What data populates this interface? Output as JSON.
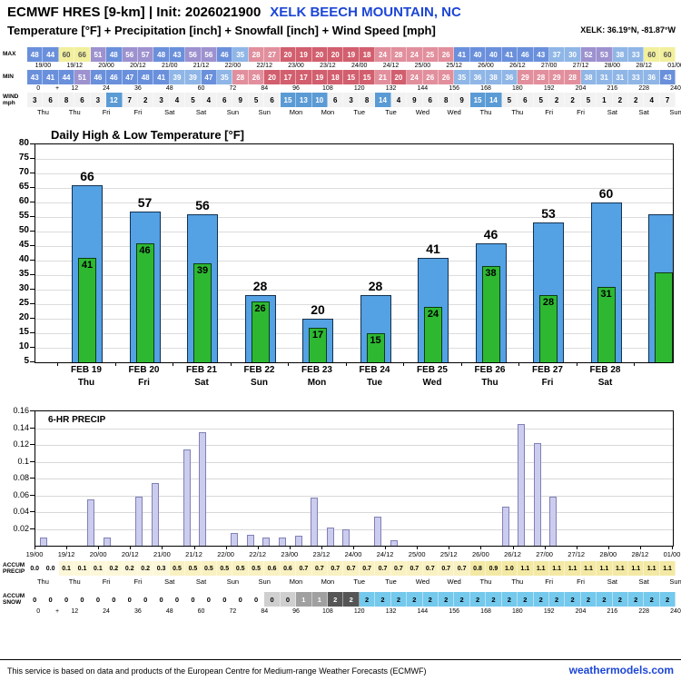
{
  "header": {
    "model_title": "ECMWF HRES [9-km] | Init: 2026021900",
    "station": "XELK BEECH MOUNTAIN, NC",
    "subtitle": "Temperature [°F] + Precipitation [inch] + Snowfall [inch] + Wind Speed [mph]",
    "coords": "XELK: 36.19°N, -81.87°W"
  },
  "strips": {
    "max_label": "MAX",
    "min_label": "MIN",
    "wind_label_line1": "WIND",
    "wind_label_line2": "mph",
    "max_temps": [
      48,
      44,
      60,
      66,
      51,
      48,
      56,
      57,
      48,
      43,
      56,
      56,
      46,
      35,
      28,
      27,
      20,
      19,
      20,
      20,
      19,
      18,
      24,
      28,
      24,
      25,
      26,
      41,
      40,
      40,
      41,
      46,
      43,
      37,
      30,
      52,
      53,
      38,
      33,
      60,
      60
    ],
    "min_temps": [
      43,
      41,
      44,
      51,
      46,
      46,
      47,
      48,
      41,
      39,
      39,
      47,
      35,
      28,
      26,
      20,
      17,
      17,
      19,
      18,
      15,
      15,
      21,
      20,
      24,
      26,
      26,
      35,
      36,
      38,
      36,
      29,
      28,
      29,
      28,
      38,
      31,
      31,
      33,
      36,
      43
    ],
    "wind": [
      3,
      6,
      8,
      6,
      3,
      12,
      7,
      2,
      3,
      4,
      5,
      4,
      6,
      9,
      5,
      6,
      15,
      13,
      10,
      6,
      3,
      8,
      14,
      4,
      9,
      6,
      8,
      9,
      15,
      14,
      5,
      6,
      5,
      2,
      2,
      5,
      1,
      2,
      2,
      4,
      7
    ],
    "times": [
      "19/00",
      "19/12",
      "20/00",
      "20/12",
      "21/00",
      "21/12",
      "22/00",
      "22/12",
      "23/00",
      "23/12",
      "24/00",
      "24/12",
      "25/00",
      "25/12",
      "26/00",
      "26/12",
      "27/00",
      "27/12",
      "28/00",
      "28/12",
      "01/00"
    ],
    "hours": [
      "0",
      "+",
      "12",
      "24",
      "36",
      "48",
      "60",
      "72",
      "84",
      "96",
      "108",
      "120",
      "132",
      "144",
      "156",
      "168",
      "180",
      "192",
      "204",
      "216",
      "228",
      "240"
    ],
    "days": [
      "Thu",
      "Thu",
      "Fri",
      "Fri",
      "Sat",
      "Sat",
      "Sun",
      "Sun",
      "Mon",
      "Mon",
      "Tue",
      "Tue",
      "Wed",
      "Wed",
      "Thu",
      "Thu",
      "Fri",
      "Fri",
      "Sat",
      "Sat",
      "Sun"
    ]
  },
  "accum": {
    "precip_label_line1": "ACCUM",
    "precip_label_line2": "PRECIP",
    "snow_label_line1": "ACCUM",
    "snow_label_line2": "SNOW",
    "precip": [
      "0.0",
      "0.0",
      "0.1",
      "0.1",
      "0.1",
      "0.2",
      "0.2",
      "0.2",
      "0.3",
      "0.5",
      "0.5",
      "0.5",
      "0.5",
      "0.5",
      "0.5",
      "0.6",
      "0.6",
      "0.7",
      "0.7",
      "0.7",
      "0.7",
      "0.7",
      "0.7",
      "0.7",
      "0.7",
      "0.7",
      "0.7",
      "0.7",
      "0.8",
      "0.9",
      "1.0",
      "1.1",
      "1.1",
      "1.1",
      "1.1",
      "1.1",
      "1.1",
      "1.1",
      "1.1",
      "1.1",
      "1.1"
    ],
    "snow_values": [
      "0",
      "0",
      "0",
      "0",
      "0",
      "0",
      "0",
      "0",
      "0",
      "0",
      "0",
      "0",
      "0",
      "0",
      "0",
      "0",
      "0",
      "1",
      "1",
      "2",
      "2",
      "2",
      "2",
      "2",
      "2",
      "2",
      "2",
      "2",
      "2",
      "2",
      "2",
      "2",
      "2",
      "2",
      "2",
      "2",
      "2",
      "2",
      "2",
      "2",
      "2"
    ],
    "snow_styles": [
      "w",
      "w",
      "w",
      "w",
      "w",
      "w",
      "w",
      "w",
      "w",
      "w",
      "w",
      "w",
      "w",
      "w",
      "w",
      "l",
      "l",
      "m",
      "m",
      "d",
      "d",
      "b",
      "b",
      "b",
      "b",
      "b",
      "b",
      "b",
      "b",
      "b",
      "b",
      "b",
      "b",
      "b",
      "b",
      "b",
      "b",
      "b",
      "b",
      "b",
      "b"
    ]
  },
  "palette": {
    "deg60s": "#f2ef9d",
    "deg50s": "#9d92cf",
    "deg40s": "#6a90dc",
    "deg30s": "#8fb6e6",
    "deg20s": "#e28f9d",
    "deg10s": "#d25f6e",
    "wind_high": "#5b9bd5",
    "snow_blue": "#74c9ec"
  },
  "chart_data": [
    {
      "type": "bar",
      "title": "Daily High & Low Temperature [°F]",
      "categories": [
        "FEB 19",
        "FEB 20",
        "FEB 21",
        "FEB 22",
        "FEB 23",
        "FEB 24",
        "FEB 25",
        "FEB 26",
        "FEB 27",
        "FEB 28"
      ],
      "day_names": [
        "Thu",
        "Fri",
        "Sat",
        "Sun",
        "Mon",
        "Tue",
        "Wed",
        "Thu",
        "Fri",
        "Sat"
      ],
      "series": [
        {
          "name": "High",
          "values": [
            66,
            57,
            56,
            28,
            20,
            28,
            41,
            46,
            53,
            60
          ]
        },
        {
          "name": "Low",
          "values": [
            41,
            46,
            39,
            26,
            17,
            15,
            24,
            38,
            28,
            31
          ]
        }
      ],
      "partial_next_day": {
        "high": 56,
        "low": 36
      },
      "ylim": [
        5,
        80
      ],
      "ytick_step": 5,
      "grid": true,
      "colors": {
        "high": "#54a1e4",
        "low": "#2eb832"
      }
    },
    {
      "type": "bar",
      "title": "6-HR PRECIP",
      "interval_hours": 6,
      "values": [
        0.01,
        0,
        0,
        0.055,
        0.01,
        0,
        0.058,
        0.075,
        0,
        0.115,
        0.135,
        0,
        0.015,
        0.013,
        0.01,
        0.01,
        0.012,
        0.057,
        0.022,
        0.02,
        0,
        0.035,
        0.006,
        0,
        0,
        0,
        0,
        0,
        0,
        0.046,
        0.145,
        0.122,
        0.058,
        0,
        0,
        0,
        0,
        0,
        0,
        0
      ],
      "ylim": [
        0,
        0.16
      ],
      "ytick_step": 0.02,
      "bar_color": "#ccccee",
      "bar_border": "#8080b8"
    }
  ],
  "footer": {
    "disclaimer": "This service is based on data and products of the European Centre for Medium-range Weather Forecasts (ECMWF)",
    "brand": "weathermodels.com"
  }
}
